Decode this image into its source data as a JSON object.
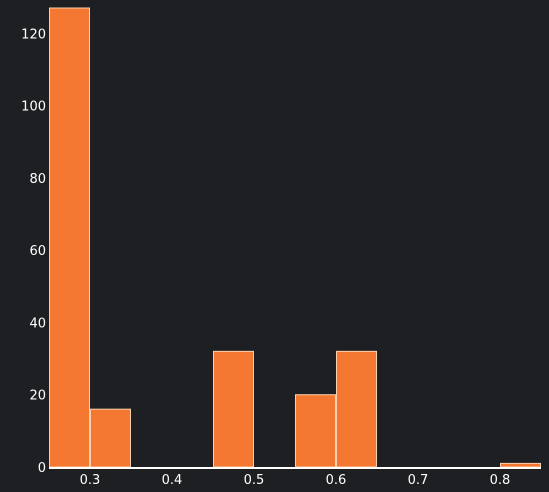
{
  "chart_data": {
    "type": "bar",
    "subtype": "histogram",
    "title": "",
    "xlabel": "",
    "ylabel": "",
    "bin_width": 0.05,
    "bins": [
      {
        "start": 0.25,
        "end": 0.3,
        "count": 127
      },
      {
        "start": 0.3,
        "end": 0.35,
        "count": 16
      },
      {
        "start": 0.35,
        "end": 0.4,
        "count": 0
      },
      {
        "start": 0.4,
        "end": 0.45,
        "count": 0
      },
      {
        "start": 0.45,
        "end": 0.5,
        "count": 32
      },
      {
        "start": 0.5,
        "end": 0.55,
        "count": 0
      },
      {
        "start": 0.55,
        "end": 0.6,
        "count": 20
      },
      {
        "start": 0.6,
        "end": 0.65,
        "count": 32
      },
      {
        "start": 0.65,
        "end": 0.7,
        "count": 0
      },
      {
        "start": 0.7,
        "end": 0.75,
        "count": 0
      },
      {
        "start": 0.75,
        "end": 0.8,
        "count": 0
      },
      {
        "start": 0.8,
        "end": 0.85,
        "count": 1
      }
    ],
    "xlim": [
      0.25,
      0.85
    ],
    "ylim": [
      0,
      127
    ],
    "x_ticks": [
      0.3,
      0.4,
      0.5,
      0.6,
      0.7,
      0.8
    ],
    "x_tick_labels": [
      "0.3",
      "0.4",
      "0.5",
      "0.6",
      "0.7",
      "0.8"
    ],
    "y_ticks": [
      0,
      20,
      40,
      60,
      80,
      100,
      120
    ],
    "y_tick_labels": [
      "0",
      "20",
      "40",
      "60",
      "80",
      "100",
      "120"
    ],
    "grid": false,
    "legend": "none",
    "colors": {
      "background": "#1e1f22",
      "bar_fill": "#f47832",
      "bar_stroke": "#fbd0b0",
      "axis_line": "#ffffff",
      "text": "#ffffff"
    }
  }
}
